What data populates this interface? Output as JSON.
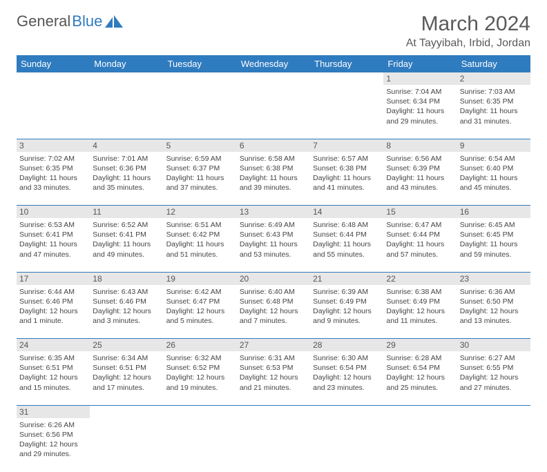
{
  "logo": {
    "text_a": "General",
    "text_b": "Blue"
  },
  "title": "March 2024",
  "location": "At Tayyibah, Irbid, Jordan",
  "colors": {
    "header_bg": "#2f7bbf",
    "header_fg": "#ffffff",
    "daynum_bg": "#e7e7e7",
    "rule": "#2f7bbf",
    "text": "#444444",
    "title_color": "#5a5a5a"
  },
  "weekdays": [
    "Sunday",
    "Monday",
    "Tuesday",
    "Wednesday",
    "Thursday",
    "Friday",
    "Saturday"
  ],
  "weeks": [
    [
      null,
      null,
      null,
      null,
      null,
      {
        "n": "1",
        "sr": "7:04 AM",
        "ss": "6:34 PM",
        "dl": "11 hours and 29 minutes."
      },
      {
        "n": "2",
        "sr": "7:03 AM",
        "ss": "6:35 PM",
        "dl": "11 hours and 31 minutes."
      }
    ],
    [
      {
        "n": "3",
        "sr": "7:02 AM",
        "ss": "6:35 PM",
        "dl": "11 hours and 33 minutes."
      },
      {
        "n": "4",
        "sr": "7:01 AM",
        "ss": "6:36 PM",
        "dl": "11 hours and 35 minutes."
      },
      {
        "n": "5",
        "sr": "6:59 AM",
        "ss": "6:37 PM",
        "dl": "11 hours and 37 minutes."
      },
      {
        "n": "6",
        "sr": "6:58 AM",
        "ss": "6:38 PM",
        "dl": "11 hours and 39 minutes."
      },
      {
        "n": "7",
        "sr": "6:57 AM",
        "ss": "6:38 PM",
        "dl": "11 hours and 41 minutes."
      },
      {
        "n": "8",
        "sr": "6:56 AM",
        "ss": "6:39 PM",
        "dl": "11 hours and 43 minutes."
      },
      {
        "n": "9",
        "sr": "6:54 AM",
        "ss": "6:40 PM",
        "dl": "11 hours and 45 minutes."
      }
    ],
    [
      {
        "n": "10",
        "sr": "6:53 AM",
        "ss": "6:41 PM",
        "dl": "11 hours and 47 minutes."
      },
      {
        "n": "11",
        "sr": "6:52 AM",
        "ss": "6:41 PM",
        "dl": "11 hours and 49 minutes."
      },
      {
        "n": "12",
        "sr": "6:51 AM",
        "ss": "6:42 PM",
        "dl": "11 hours and 51 minutes."
      },
      {
        "n": "13",
        "sr": "6:49 AM",
        "ss": "6:43 PM",
        "dl": "11 hours and 53 minutes."
      },
      {
        "n": "14",
        "sr": "6:48 AM",
        "ss": "6:44 PM",
        "dl": "11 hours and 55 minutes."
      },
      {
        "n": "15",
        "sr": "6:47 AM",
        "ss": "6:44 PM",
        "dl": "11 hours and 57 minutes."
      },
      {
        "n": "16",
        "sr": "6:45 AM",
        "ss": "6:45 PM",
        "dl": "11 hours and 59 minutes."
      }
    ],
    [
      {
        "n": "17",
        "sr": "6:44 AM",
        "ss": "6:46 PM",
        "dl": "12 hours and 1 minute."
      },
      {
        "n": "18",
        "sr": "6:43 AM",
        "ss": "6:46 PM",
        "dl": "12 hours and 3 minutes."
      },
      {
        "n": "19",
        "sr": "6:42 AM",
        "ss": "6:47 PM",
        "dl": "12 hours and 5 minutes."
      },
      {
        "n": "20",
        "sr": "6:40 AM",
        "ss": "6:48 PM",
        "dl": "12 hours and 7 minutes."
      },
      {
        "n": "21",
        "sr": "6:39 AM",
        "ss": "6:49 PM",
        "dl": "12 hours and 9 minutes."
      },
      {
        "n": "22",
        "sr": "6:38 AM",
        "ss": "6:49 PM",
        "dl": "12 hours and 11 minutes."
      },
      {
        "n": "23",
        "sr": "6:36 AM",
        "ss": "6:50 PM",
        "dl": "12 hours and 13 minutes."
      }
    ],
    [
      {
        "n": "24",
        "sr": "6:35 AM",
        "ss": "6:51 PM",
        "dl": "12 hours and 15 minutes."
      },
      {
        "n": "25",
        "sr": "6:34 AM",
        "ss": "6:51 PM",
        "dl": "12 hours and 17 minutes."
      },
      {
        "n": "26",
        "sr": "6:32 AM",
        "ss": "6:52 PM",
        "dl": "12 hours and 19 minutes."
      },
      {
        "n": "27",
        "sr": "6:31 AM",
        "ss": "6:53 PM",
        "dl": "12 hours and 21 minutes."
      },
      {
        "n": "28",
        "sr": "6:30 AM",
        "ss": "6:54 PM",
        "dl": "12 hours and 23 minutes."
      },
      {
        "n": "29",
        "sr": "6:28 AM",
        "ss": "6:54 PM",
        "dl": "12 hours and 25 minutes."
      },
      {
        "n": "30",
        "sr": "6:27 AM",
        "ss": "6:55 PM",
        "dl": "12 hours and 27 minutes."
      }
    ],
    [
      {
        "n": "31",
        "sr": "6:26 AM",
        "ss": "6:56 PM",
        "dl": "12 hours and 29 minutes."
      },
      null,
      null,
      null,
      null,
      null,
      null
    ]
  ],
  "labels": {
    "sunrise": "Sunrise:",
    "sunset": "Sunset:",
    "daylight": "Daylight:"
  }
}
